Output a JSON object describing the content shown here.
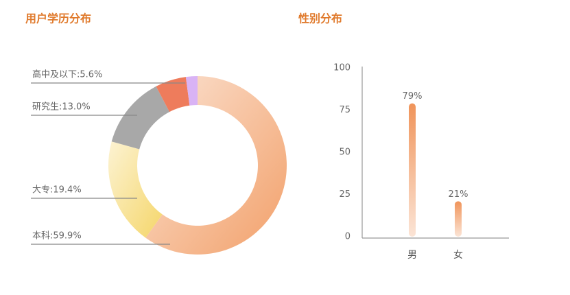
{
  "chart_data": [
    {
      "type": "pie",
      "title": "用户学历分布",
      "values": [
        59.9,
        19.4,
        13.0,
        5.6,
        2.1
      ],
      "value_labels": [
        "本科:59.9%",
        "大专:19.4%",
        "研究生:13.0%",
        "高中及以下:5.6%",
        null
      ],
      "colors": [
        "#f2a06a",
        "#f5d66a",
        "#a8a8a8",
        "#ee7c5c",
        "#d9b3f5"
      ]
    },
    {
      "type": "bar",
      "title": "性别分布",
      "categories": [
        "男",
        "女"
      ],
      "values": [
        79,
        21
      ],
      "value_labels": [
        "79%",
        "21%"
      ],
      "color": "#f0945a",
      "ylim": [
        0,
        100
      ],
      "yticks": [
        0,
        25,
        50,
        75,
        100
      ]
    }
  ]
}
